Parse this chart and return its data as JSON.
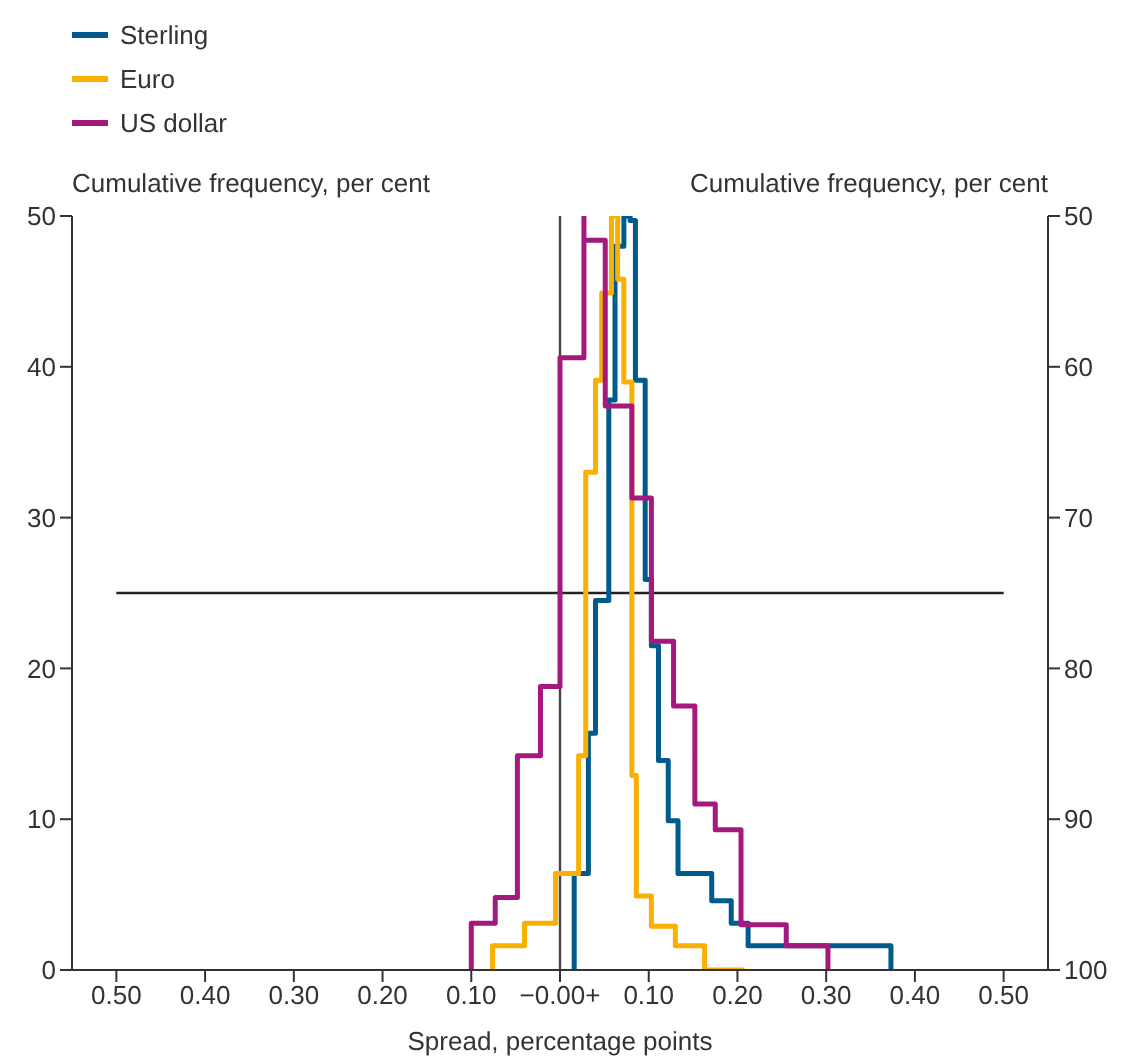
{
  "chart_data": {
    "type": "line",
    "xlabel": "Spread, percentage points",
    "ylabel": "Cumulative frequency, per cent",
    "y2label": "Cumulative frequency, per cent",
    "xlim": [
      -0.55,
      0.55
    ],
    "xticks": [
      {
        "value": -0.5,
        "label": "0.50"
      },
      {
        "value": -0.4,
        "label": "0.40"
      },
      {
        "value": -0.3,
        "label": "0.30"
      },
      {
        "value": -0.2,
        "label": "0.20"
      },
      {
        "value": -0.1,
        "label": "0.10"
      },
      {
        "value": 0,
        "label": "−0.00+"
      },
      {
        "value": 0.1,
        "label": "0.10"
      },
      {
        "value": 0.2,
        "label": "0.20"
      },
      {
        "value": 0.3,
        "label": "0.30"
      },
      {
        "value": 0.4,
        "label": "0.40"
      },
      {
        "value": 0.5,
        "label": "0.50"
      }
    ],
    "ylim": [
      0,
      50
    ],
    "yticks": [
      0,
      10,
      20,
      30,
      40,
      50
    ],
    "y2lim": [
      100,
      50
    ],
    "y2ticks": [
      50,
      60,
      70,
      80,
      90,
      100
    ],
    "legend": "top left",
    "ref_lines": [
      {
        "axis": "y",
        "value": 25,
        "color": "#222222"
      },
      {
        "axis": "x",
        "value": 0,
        "color": "#444444"
      }
    ],
    "series": [
      {
        "name": "Sterling",
        "color": "#005a8c",
        "x": [
          0.016,
          0.016,
          0.032,
          0.032,
          0.04,
          0.04,
          0.055,
          0.055,
          0.062,
          0.062,
          0.072,
          0.072,
          0.077,
          0.079,
          0.079,
          0.085,
          0.085,
          0.096,
          0.096,
          0.103,
          0.103,
          0.111,
          0.111,
          0.122,
          0.122,
          0.133,
          0.133,
          0.171,
          0.171,
          0.193,
          0.193,
          0.212,
          0.212,
          0.373,
          0.373
        ],
        "values": [
          0,
          6.4,
          6.4,
          15.7,
          15.7,
          24.5,
          24.5,
          37.8,
          37.8,
          48,
          48,
          50,
          50,
          50,
          49.7,
          49.7,
          39.1,
          39.1,
          25.9,
          25.9,
          21.5,
          21.5,
          13.9,
          13.9,
          9.9,
          9.9,
          6.4,
          6.4,
          4.6,
          4.6,
          3.1,
          3.1,
          1.6,
          1.6,
          0
        ]
      },
      {
        "name": "Euro",
        "color": "#f9b000",
        "x": [
          -0.076,
          -0.076,
          -0.04,
          -0.04,
          -0.005,
          -0.005,
          0.021,
          0.021,
          0.029,
          0.029,
          0.04,
          0.04,
          0.047,
          0.047,
          0.058,
          0.058,
          0.065,
          0.065,
          0.072,
          0.072,
          0.081,
          0.081,
          0.086,
          0.086,
          0.103,
          0.103,
          0.13,
          0.13,
          0.163,
          0.163,
          0.208,
          0.208
        ],
        "values": [
          0,
          1.6,
          1.6,
          3.1,
          3.1,
          6.4,
          6.4,
          14.2,
          14.2,
          33,
          33,
          39.1,
          39.1,
          44.9,
          44.9,
          50,
          50,
          45.8,
          45.8,
          39,
          39,
          12.9,
          12.9,
          4.9,
          4.9,
          2.9,
          2.9,
          1.6,
          1.6,
          0,
          0,
          0
        ]
      },
      {
        "name": "US dollar",
        "color": "#a5197f",
        "x": [
          -0.1,
          -0.1,
          -0.073,
          -0.073,
          -0.048,
          -0.048,
          -0.022,
          -0.022,
          0,
          0,
          0.027,
          0.027,
          0.027,
          0.051,
          0.051,
          0.081,
          0.081,
          0.103,
          0.103,
          0.128,
          0.128,
          0.152,
          0.152,
          0.175,
          0.175,
          0.204,
          0.204,
          0.255,
          0.255,
          0.302,
          0.302
        ],
        "values": [
          0,
          3.1,
          3.1,
          4.8,
          4.8,
          14.2,
          14.2,
          18.8,
          18.8,
          40.6,
          40.6,
          50,
          48.4,
          48.4,
          37.4,
          37.4,
          31.3,
          31.3,
          21.8,
          21.8,
          17.5,
          17.5,
          11,
          11,
          9.3,
          9.3,
          3,
          3,
          1.6,
          1.6,
          0
        ]
      }
    ]
  }
}
